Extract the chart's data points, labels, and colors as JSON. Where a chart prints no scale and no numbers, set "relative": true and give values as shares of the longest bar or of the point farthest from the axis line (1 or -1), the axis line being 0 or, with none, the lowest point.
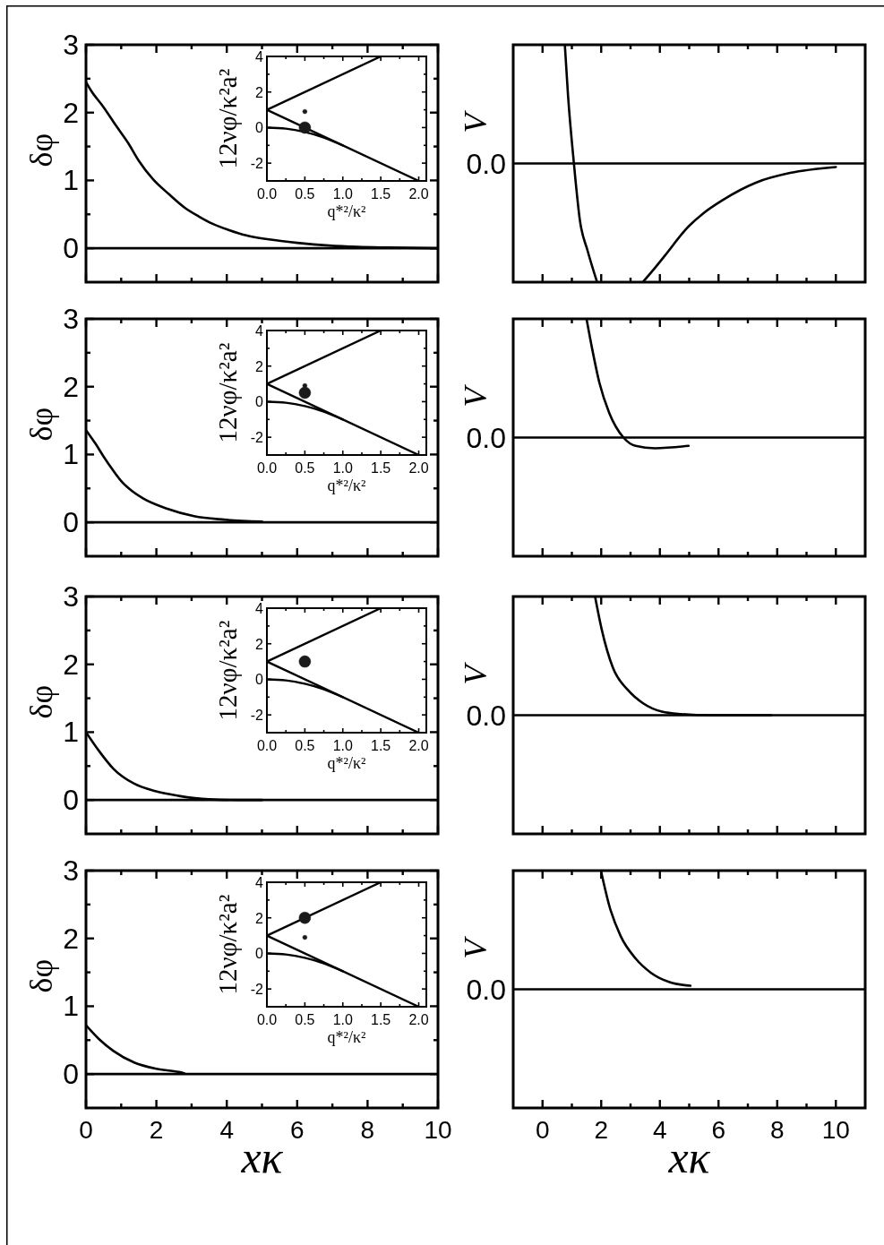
{
  "chart_data": [
    {
      "type": "line",
      "ylabel": "δφ",
      "xlim": [
        0,
        10
      ],
      "ylim": [
        -0.5,
        3
      ],
      "xticks": [
        0,
        {
          "value": 1,
          "label": null
        },
        2,
        {
          "value": 3,
          "label": null
        },
        4,
        {
          "value": 5,
          "label": null
        },
        6,
        {
          "value": 7,
          "label": null
        },
        8,
        {
          "value": 9,
          "label": null
        },
        10
      ],
      "yticks": [
        0,
        {
          "value": 0.5,
          "label": null
        },
        1,
        {
          "value": 1.5,
          "label": null
        },
        2,
        {
          "value": 2.5,
          "label": null
        },
        3
      ],
      "tick_labels": "y",
      "series": [
        {
          "color": "#000000",
          "x": [
            0,
            0.15,
            0.5,
            0.85,
            1.2,
            1.5,
            1.9,
            2.35,
            2.8,
            3.2,
            3.6,
            4.05,
            4.55,
            5.2,
            6.0,
            6.9,
            7.7,
            8.6,
            10
          ],
          "values": [
            2.45,
            2.32,
            2.08,
            1.81,
            1.55,
            1.29,
            1.02,
            0.8,
            0.6,
            0.47,
            0.36,
            0.27,
            0.19,
            0.13,
            0.08,
            0.04,
            0.02,
            0.01,
            0
          ]
        }
      ],
      "ref_lines": [
        {
          "axis": "y",
          "value": 0,
          "color": "#000000"
        }
      ]
    },
    {
      "type": "line",
      "xlabel": "q*²/κ²",
      "ylabel": "12νφ/κ²a²",
      "xlim": [
        0,
        2.1
      ],
      "ylim": [
        -3,
        4
      ],
      "xticks": [
        {
          "value": 0,
          "label": "0.0"
        },
        {
          "value": 0.25,
          "label": null
        },
        {
          "value": 0.5,
          "label": "0.5"
        },
        {
          "value": 0.75,
          "label": null
        },
        {
          "value": 1,
          "label": "1.0"
        },
        {
          "value": 1.25,
          "label": null
        },
        {
          "value": 1.5,
          "label": "1.5"
        },
        {
          "value": 1.75,
          "label": null
        },
        {
          "value": 2,
          "label": "2.0"
        }
      ],
      "yticks": [
        -2,
        {
          "value": -1,
          "label": null
        },
        0,
        {
          "value": 1,
          "label": null
        },
        2,
        {
          "value": 3,
          "label": null
        },
        4
      ],
      "series": [
        {
          "color": "#000000",
          "x": [
            0,
            1.5
          ],
          "values": [
            1,
            4
          ]
        },
        {
          "color": "#000000",
          "x": [
            0,
            2
          ],
          "values": [
            1,
            -3
          ]
        },
        {
          "color": "#000000",
          "x": [
            0,
            0.25,
            0.5,
            0.75,
            1
          ],
          "values": [
            0,
            -0.06,
            -0.25,
            -0.56,
            -1
          ]
        },
        {
          "type": "scatter",
          "marker": "circle",
          "color": "#1a1a1a",
          "x": [
            0.5
          ],
          "values": [
            0
          ]
        },
        {
          "type": "scatter",
          "marker": "circle",
          "color": "#1a1a1a",
          "x": [
            0.5
          ],
          "values": [
            0.9
          ]
        }
      ]
    },
    {
      "type": "line",
      "ylabel": "V",
      "relative": true,
      "xlim": [
        -1,
        11
      ],
      "xticks": [
        0,
        {
          "value": 1,
          "label": null
        },
        2,
        {
          "value": 3,
          "label": null
        },
        4,
        {
          "value": 5,
          "label": null
        },
        6,
        {
          "value": 7,
          "label": null
        },
        8,
        {
          "value": 9,
          "label": null
        },
        10
      ],
      "tick_labels": false,
      "series": [
        {
          "color": "#000000",
          "x": [
            0.76,
            0.87,
            1.07,
            1.28,
            1.53,
            1.86,
            2.6,
            3.42,
            3.8,
            4.16,
            4.98,
            5.48,
            6.13,
            7.29,
            8.44,
            10
          ],
          "values": [
            1,
            0.57,
            0,
            -0.49,
            -0.73,
            -1,
            null,
            -1,
            -0.89,
            -0.78,
            -0.53,
            -0.42,
            -0.31,
            -0.16,
            -0.08,
            -0.03
          ]
        }
      ],
      "ref_lines": [
        {
          "axis": "y",
          "value": 0,
          "label": "0.0",
          "color": "#000000"
        }
      ]
    },
    {
      "type": "line",
      "ylabel": "δφ",
      "xlim": [
        0,
        10
      ],
      "ylim": [
        -0.5,
        3
      ],
      "xticks": [
        0,
        {
          "value": 1,
          "label": null
        },
        2,
        {
          "value": 3,
          "label": null
        },
        4,
        {
          "value": 5,
          "label": null
        },
        6,
        {
          "value": 7,
          "label": null
        },
        8,
        {
          "value": 9,
          "label": null
        },
        10
      ],
      "yticks": [
        0,
        {
          "value": 0.5,
          "label": null
        },
        1,
        {
          "value": 1.5,
          "label": null
        },
        2,
        {
          "value": 2.5,
          "label": null
        },
        3
      ],
      "tick_labels": "y",
      "series": [
        {
          "color": "#000000",
          "x": [
            0,
            0.27,
            0.5,
            0.75,
            1.03,
            1.31,
            1.63,
            2.31,
            3.07,
            3.92,
            5
          ],
          "values": [
            1.36,
            1.16,
            0.97,
            0.78,
            0.59,
            0.46,
            0.35,
            0.2,
            0.09,
            0.04,
            0.01
          ]
        }
      ],
      "ref_lines": [
        {
          "axis": "y",
          "value": 0,
          "color": "#000000"
        }
      ]
    },
    {
      "type": "line",
      "xlabel": "q*²/κ²",
      "ylabel": "12νφ/κ²a²",
      "xlim": [
        0,
        2.1
      ],
      "ylim": [
        -3,
        4
      ],
      "xticks": [
        {
          "value": 0,
          "label": "0.0"
        },
        {
          "value": 0.25,
          "label": null
        },
        {
          "value": 0.5,
          "label": "0.5"
        },
        {
          "value": 0.75,
          "label": null
        },
        {
          "value": 1,
          "label": "1.0"
        },
        {
          "value": 1.25,
          "label": null
        },
        {
          "value": 1.5,
          "label": "1.5"
        },
        {
          "value": 1.75,
          "label": null
        },
        {
          "value": 2,
          "label": "2.0"
        }
      ],
      "yticks": [
        -2,
        {
          "value": -1,
          "label": null
        },
        0,
        {
          "value": 1,
          "label": null
        },
        2,
        {
          "value": 3,
          "label": null
        },
        4
      ],
      "series": [
        {
          "color": "#000000",
          "x": [
            0,
            1.5
          ],
          "values": [
            1,
            4
          ]
        },
        {
          "color": "#000000",
          "x": [
            0,
            2
          ],
          "values": [
            1,
            -3
          ]
        },
        {
          "color": "#000000",
          "x": [
            0,
            0.25,
            0.5,
            0.75,
            1
          ],
          "values": [
            0,
            -0.06,
            -0.25,
            -0.56,
            -1
          ]
        },
        {
          "type": "scatter",
          "marker": "circle",
          "color": "#1a1a1a",
          "x": [
            0.5
          ],
          "values": [
            0.5
          ]
        },
        {
          "type": "scatter",
          "marker": "circle",
          "color": "#1a1a1a",
          "x": [
            0.5
          ],
          "values": [
            0.9
          ]
        }
      ]
    },
    {
      "type": "line",
      "ylabel": "V",
      "relative": true,
      "xlim": [
        -1,
        11
      ],
      "xticks": [
        0,
        {
          "value": 1,
          "label": null
        },
        2,
        {
          "value": 3,
          "label": null
        },
        4,
        {
          "value": 5,
          "label": null
        },
        6,
        {
          "value": 7,
          "label": null
        },
        8,
        {
          "value": 9,
          "label": null
        },
        10
      ],
      "tick_labels": false,
      "series": [
        {
          "color": "#000000",
          "x": [
            1.5,
            1.69,
            1.94,
            2.27,
            2.76,
            3.17,
            3.83,
            4.98
          ],
          "values": [
            1,
            0.75,
            0.46,
            0.21,
            0,
            -0.07,
            -0.09,
            -0.07
          ]
        }
      ],
      "ref_lines": [
        {
          "axis": "y",
          "value": 0,
          "label": "0.0",
          "color": "#000000"
        }
      ]
    },
    {
      "type": "line",
      "ylabel": "δφ",
      "xlim": [
        0,
        10
      ],
      "ylim": [
        -0.5,
        3
      ],
      "xticks": [
        0,
        {
          "value": 1,
          "label": null
        },
        2,
        {
          "value": 3,
          "label": null
        },
        4,
        {
          "value": 5,
          "label": null
        },
        6,
        {
          "value": 7,
          "label": null
        },
        8,
        {
          "value": 9,
          "label": null
        },
        10
      ],
      "yticks": [
        0,
        {
          "value": 0.5,
          "label": null
        },
        1,
        {
          "value": 1.5,
          "label": null
        },
        2,
        {
          "value": 2.5,
          "label": null
        },
        3
      ],
      "tick_labels": "y",
      "series": [
        {
          "color": "#000000",
          "x": [
            0,
            0.36,
            0.78,
            1.37,
            1.97,
            2.64,
            3.49,
            4.3,
            5
          ],
          "values": [
            1,
            0.73,
            0.46,
            0.24,
            0.13,
            0.06,
            0.01,
            0,
            0
          ]
        }
      ],
      "ref_lines": [
        {
          "axis": "y",
          "value": 0,
          "color": "#000000"
        }
      ]
    },
    {
      "type": "line",
      "xlabel": "q*²/κ²",
      "ylabel": "12νφ/κ²a²",
      "xlim": [
        0,
        2.1
      ],
      "ylim": [
        -3,
        4
      ],
      "xticks": [
        {
          "value": 0,
          "label": "0.0"
        },
        {
          "value": 0.25,
          "label": null
        },
        {
          "value": 0.5,
          "label": "0.5"
        },
        {
          "value": 0.75,
          "label": null
        },
        {
          "value": 1,
          "label": "1.0"
        },
        {
          "value": 1.25,
          "label": null
        },
        {
          "value": 1.5,
          "label": "1.5"
        },
        {
          "value": 1.75,
          "label": null
        },
        {
          "value": 2,
          "label": "2.0"
        }
      ],
      "yticks": [
        -2,
        {
          "value": -1,
          "label": null
        },
        0,
        {
          "value": 1,
          "label": null
        },
        2,
        {
          "value": 3,
          "label": null
        },
        4
      ],
      "series": [
        {
          "color": "#000000",
          "x": [
            0,
            1.5
          ],
          "values": [
            1,
            4
          ]
        },
        {
          "color": "#000000",
          "x": [
            0,
            2
          ],
          "values": [
            1,
            -3
          ]
        },
        {
          "color": "#000000",
          "x": [
            0,
            0.25,
            0.5,
            0.75,
            1
          ],
          "values": [
            0,
            -0.06,
            -0.25,
            -0.56,
            -1
          ]
        },
        {
          "type": "scatter",
          "marker": "circle",
          "color": "#1a1a1a",
          "x": [
            0.5
          ],
          "values": [
            1
          ]
        }
      ]
    },
    {
      "type": "line",
      "ylabel": "V",
      "relative": true,
      "xlim": [
        -1,
        11
      ],
      "xticks": [
        0,
        {
          "value": 1,
          "label": null
        },
        2,
        {
          "value": 3,
          "label": null
        },
        4,
        {
          "value": 5,
          "label": null
        },
        6,
        {
          "value": 7,
          "label": null
        },
        8,
        {
          "value": 9,
          "label": null
        },
        10
      ],
      "tick_labels": false,
      "series": [
        {
          "color": "#000000",
          "x": [
            1.79,
            2.02,
            2.4,
            2.92,
            3.43,
            4.07,
            4.72,
            5.75,
            7.8
          ],
          "values": [
            1,
            0.72,
            0.4,
            0.21,
            0.1,
            0.03,
            0.01,
            0,
            0
          ]
        }
      ],
      "ref_lines": [
        {
          "axis": "y",
          "value": 0,
          "label": "0.0",
          "color": "#000000"
        }
      ]
    },
    {
      "type": "line",
      "xlabel": "xκ",
      "ylabel": "δφ",
      "xlim": [
        0,
        10
      ],
      "ylim": [
        -0.5,
        3
      ],
      "xticks": [
        0,
        {
          "value": 1,
          "label": null
        },
        2,
        {
          "value": 3,
          "label": null
        },
        4,
        {
          "value": 5,
          "label": null
        },
        6,
        {
          "value": 7,
          "label": null
        },
        8,
        {
          "value": 9,
          "label": null
        },
        10
      ],
      "yticks": [
        0,
        {
          "value": 0.5,
          "label": null
        },
        1,
        {
          "value": 1.5,
          "label": null
        },
        2,
        {
          "value": 2.5,
          "label": null
        },
        3
      ],
      "series": [
        {
          "color": "#000000",
          "x": [
            0,
            0.36,
            0.78,
            1.37,
            1.97,
            2.64,
            2.8
          ],
          "values": [
            0.72,
            0.52,
            0.34,
            0.17,
            0.08,
            0.03,
            0.01
          ]
        }
      ],
      "ref_lines": [
        {
          "axis": "y",
          "value": 0,
          "color": "#000000"
        }
      ]
    },
    {
      "type": "line",
      "xlabel": "q*²/κ²",
      "ylabel": "12νφ/κ²a²",
      "xlim": [
        0,
        2.1
      ],
      "ylim": [
        -3,
        4
      ],
      "xticks": [
        {
          "value": 0,
          "label": "0.0"
        },
        {
          "value": 0.25,
          "label": null
        },
        {
          "value": 0.5,
          "label": "0.5"
        },
        {
          "value": 0.75,
          "label": null
        },
        {
          "value": 1,
          "label": "1.0"
        },
        {
          "value": 1.25,
          "label": null
        },
        {
          "value": 1.5,
          "label": "1.5"
        },
        {
          "value": 1.75,
          "label": null
        },
        {
          "value": 2,
          "label": "2.0"
        }
      ],
      "yticks": [
        -2,
        {
          "value": -1,
          "label": null
        },
        0,
        {
          "value": 1,
          "label": null
        },
        2,
        {
          "value": 3,
          "label": null
        },
        4
      ],
      "series": [
        {
          "color": "#000000",
          "x": [
            0,
            1.5
          ],
          "values": [
            1,
            4
          ]
        },
        {
          "color": "#000000",
          "x": [
            0,
            2
          ],
          "values": [
            1,
            -3
          ]
        },
        {
          "color": "#000000",
          "x": [
            0,
            0.25,
            0.5,
            0.75,
            1
          ],
          "values": [
            0,
            -0.06,
            -0.25,
            -0.56,
            -1
          ]
        },
        {
          "type": "scatter",
          "marker": "circle",
          "color": "#1a1a1a",
          "x": [
            0.5
          ],
          "values": [
            2
          ]
        },
        {
          "type": "scatter",
          "marker": "circle",
          "color": "#1a1a1a",
          "x": [
            0.5
          ],
          "values": [
            0.9
          ]
        }
      ]
    },
    {
      "type": "line",
      "xlabel": "xκ",
      "ylabel": "V",
      "relative": true,
      "xlim": [
        -1,
        11
      ],
      "xticks": [
        0,
        {
          "value": 1,
          "label": null
        },
        2,
        {
          "value": 3,
          "label": null
        },
        4,
        {
          "value": 5,
          "label": null
        },
        6,
        {
          "value": 7,
          "label": null
        },
        8,
        {
          "value": 9,
          "label": null
        },
        10
      ],
      "tick_labels": "x",
      "series": [
        {
          "color": "#000000",
          "x": [
            1.99,
            2.28,
            2.66,
            3.17,
            3.69,
            4.33,
            5.04
          ],
          "values": [
            1,
            0.7,
            0.45,
            0.26,
            0.14,
            0.06,
            0.03
          ]
        }
      ],
      "ref_lines": [
        {
          "axis": "y",
          "value": 0,
          "label": "0.0",
          "color": "#000000"
        }
      ]
    }
  ]
}
